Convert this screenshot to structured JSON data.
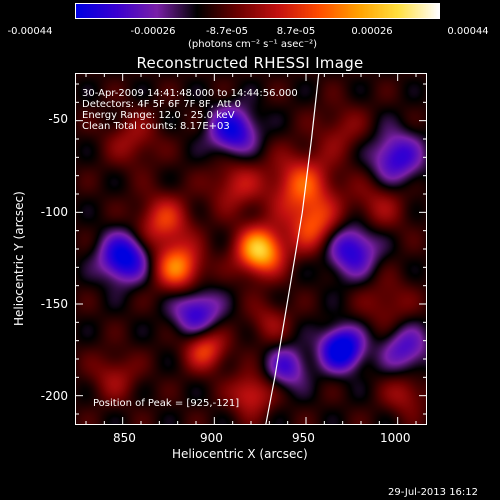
{
  "colorbar": {
    "ticks": [
      "-0.00044",
      "-0.00026",
      "-8.7e-05",
      "8.7e-05",
      "0.00026",
      "0.00044"
    ],
    "units_text": "(photons cm⁻² s⁻¹ asec⁻²)",
    "min": -0.00044,
    "max": 0.00044,
    "colormap": [
      "#0000e0",
      "#3a00d0",
      "#7a20a8",
      "#000000",
      "#6a0000",
      "#c21010",
      "#ff4a00",
      "#ffa000",
      "#ffe040",
      "#ffffff"
    ]
  },
  "chart_data": {
    "type": "heatmap",
    "title": "Reconstructed RHESSI Image",
    "xlabel": "Heliocentric X (arcsec)",
    "ylabel": "Heliocentric Y (arcsec)",
    "xlim": [
      824,
      1016
    ],
    "ylim": [
      -216,
      -24
    ],
    "xticks": [
      850,
      900,
      950,
      1000
    ],
    "yticks": [
      -50,
      -100,
      -150,
      -200
    ],
    "annotations": [
      "30-Apr-2009 14:41:48.000 to 14:44:56.000",
      "Detectors: 4F 5F 6F 7F 8F, Att 0",
      "Energy Range: 12.0 - 25.0 keV",
      "Clean     Total counts: 8.17E+03"
    ],
    "peak_label": "Position of Peak = [925,-121]",
    "peak": [
      925,
      -121
    ],
    "limb_curve": [
      [
        928,
        -216
      ],
      [
        933,
        -190
      ],
      [
        938,
        -160
      ],
      [
        943,
        -130
      ],
      [
        948,
        -100
      ],
      [
        953,
        -60
      ],
      [
        957,
        -24
      ]
    ],
    "blobs": [
      {
        "x": 925,
        "y": -121,
        "amp": 0.00044,
        "s": 9
      },
      {
        "x": 880,
        "y": -130,
        "amp": 0.00032,
        "s": 9
      },
      {
        "x": 872,
        "y": -105,
        "amp": 0.00022,
        "s": 10
      },
      {
        "x": 948,
        "y": -85,
        "amp": 0.00026,
        "s": 12
      },
      {
        "x": 955,
        "y": -108,
        "amp": 0.00024,
        "s": 10
      },
      {
        "x": 912,
        "y": -85,
        "amp": 0.00016,
        "s": 10
      },
      {
        "x": 895,
        "y": -175,
        "amp": 0.00024,
        "s": 8
      },
      {
        "x": 920,
        "y": -200,
        "amp": 0.0002,
        "s": 8
      },
      {
        "x": 990,
        "y": -96,
        "amp": 0.00012,
        "s": 11
      },
      {
        "x": 845,
        "y": -190,
        "amp": 0.00012,
        "s": 9
      },
      {
        "x": 995,
        "y": -150,
        "amp": 0.0001,
        "s": 10
      },
      {
        "x": 930,
        "y": -160,
        "amp": 0.00011,
        "s": 8
      },
      {
        "x": 855,
        "y": -60,
        "amp": 0.00012,
        "s": 10
      },
      {
        "x": 1005,
        "y": -200,
        "amp": 0.00013,
        "s": 8
      },
      {
        "x": 970,
        "y": -55,
        "amp": 0.0001,
        "s": 10
      },
      {
        "x": 970,
        "y": -175,
        "amp": -0.0004,
        "s": 8
      },
      {
        "x": 850,
        "y": -125,
        "amp": -0.00035,
        "s": 9
      },
      {
        "x": 910,
        "y": -55,
        "amp": -0.0003,
        "s": 9
      },
      {
        "x": 975,
        "y": -120,
        "amp": -0.00028,
        "s": 10
      },
      {
        "x": 890,
        "y": -155,
        "amp": -0.00025,
        "s": 9
      },
      {
        "x": 1000,
        "y": -70,
        "amp": -0.00025,
        "s": 10
      },
      {
        "x": 940,
        "y": -185,
        "amp": -0.0002,
        "s": 8
      },
      {
        "x": 1005,
        "y": -175,
        "amp": -0.0002,
        "s": 9
      }
    ]
  },
  "timestamp": "29-Jul-2013 16:12"
}
